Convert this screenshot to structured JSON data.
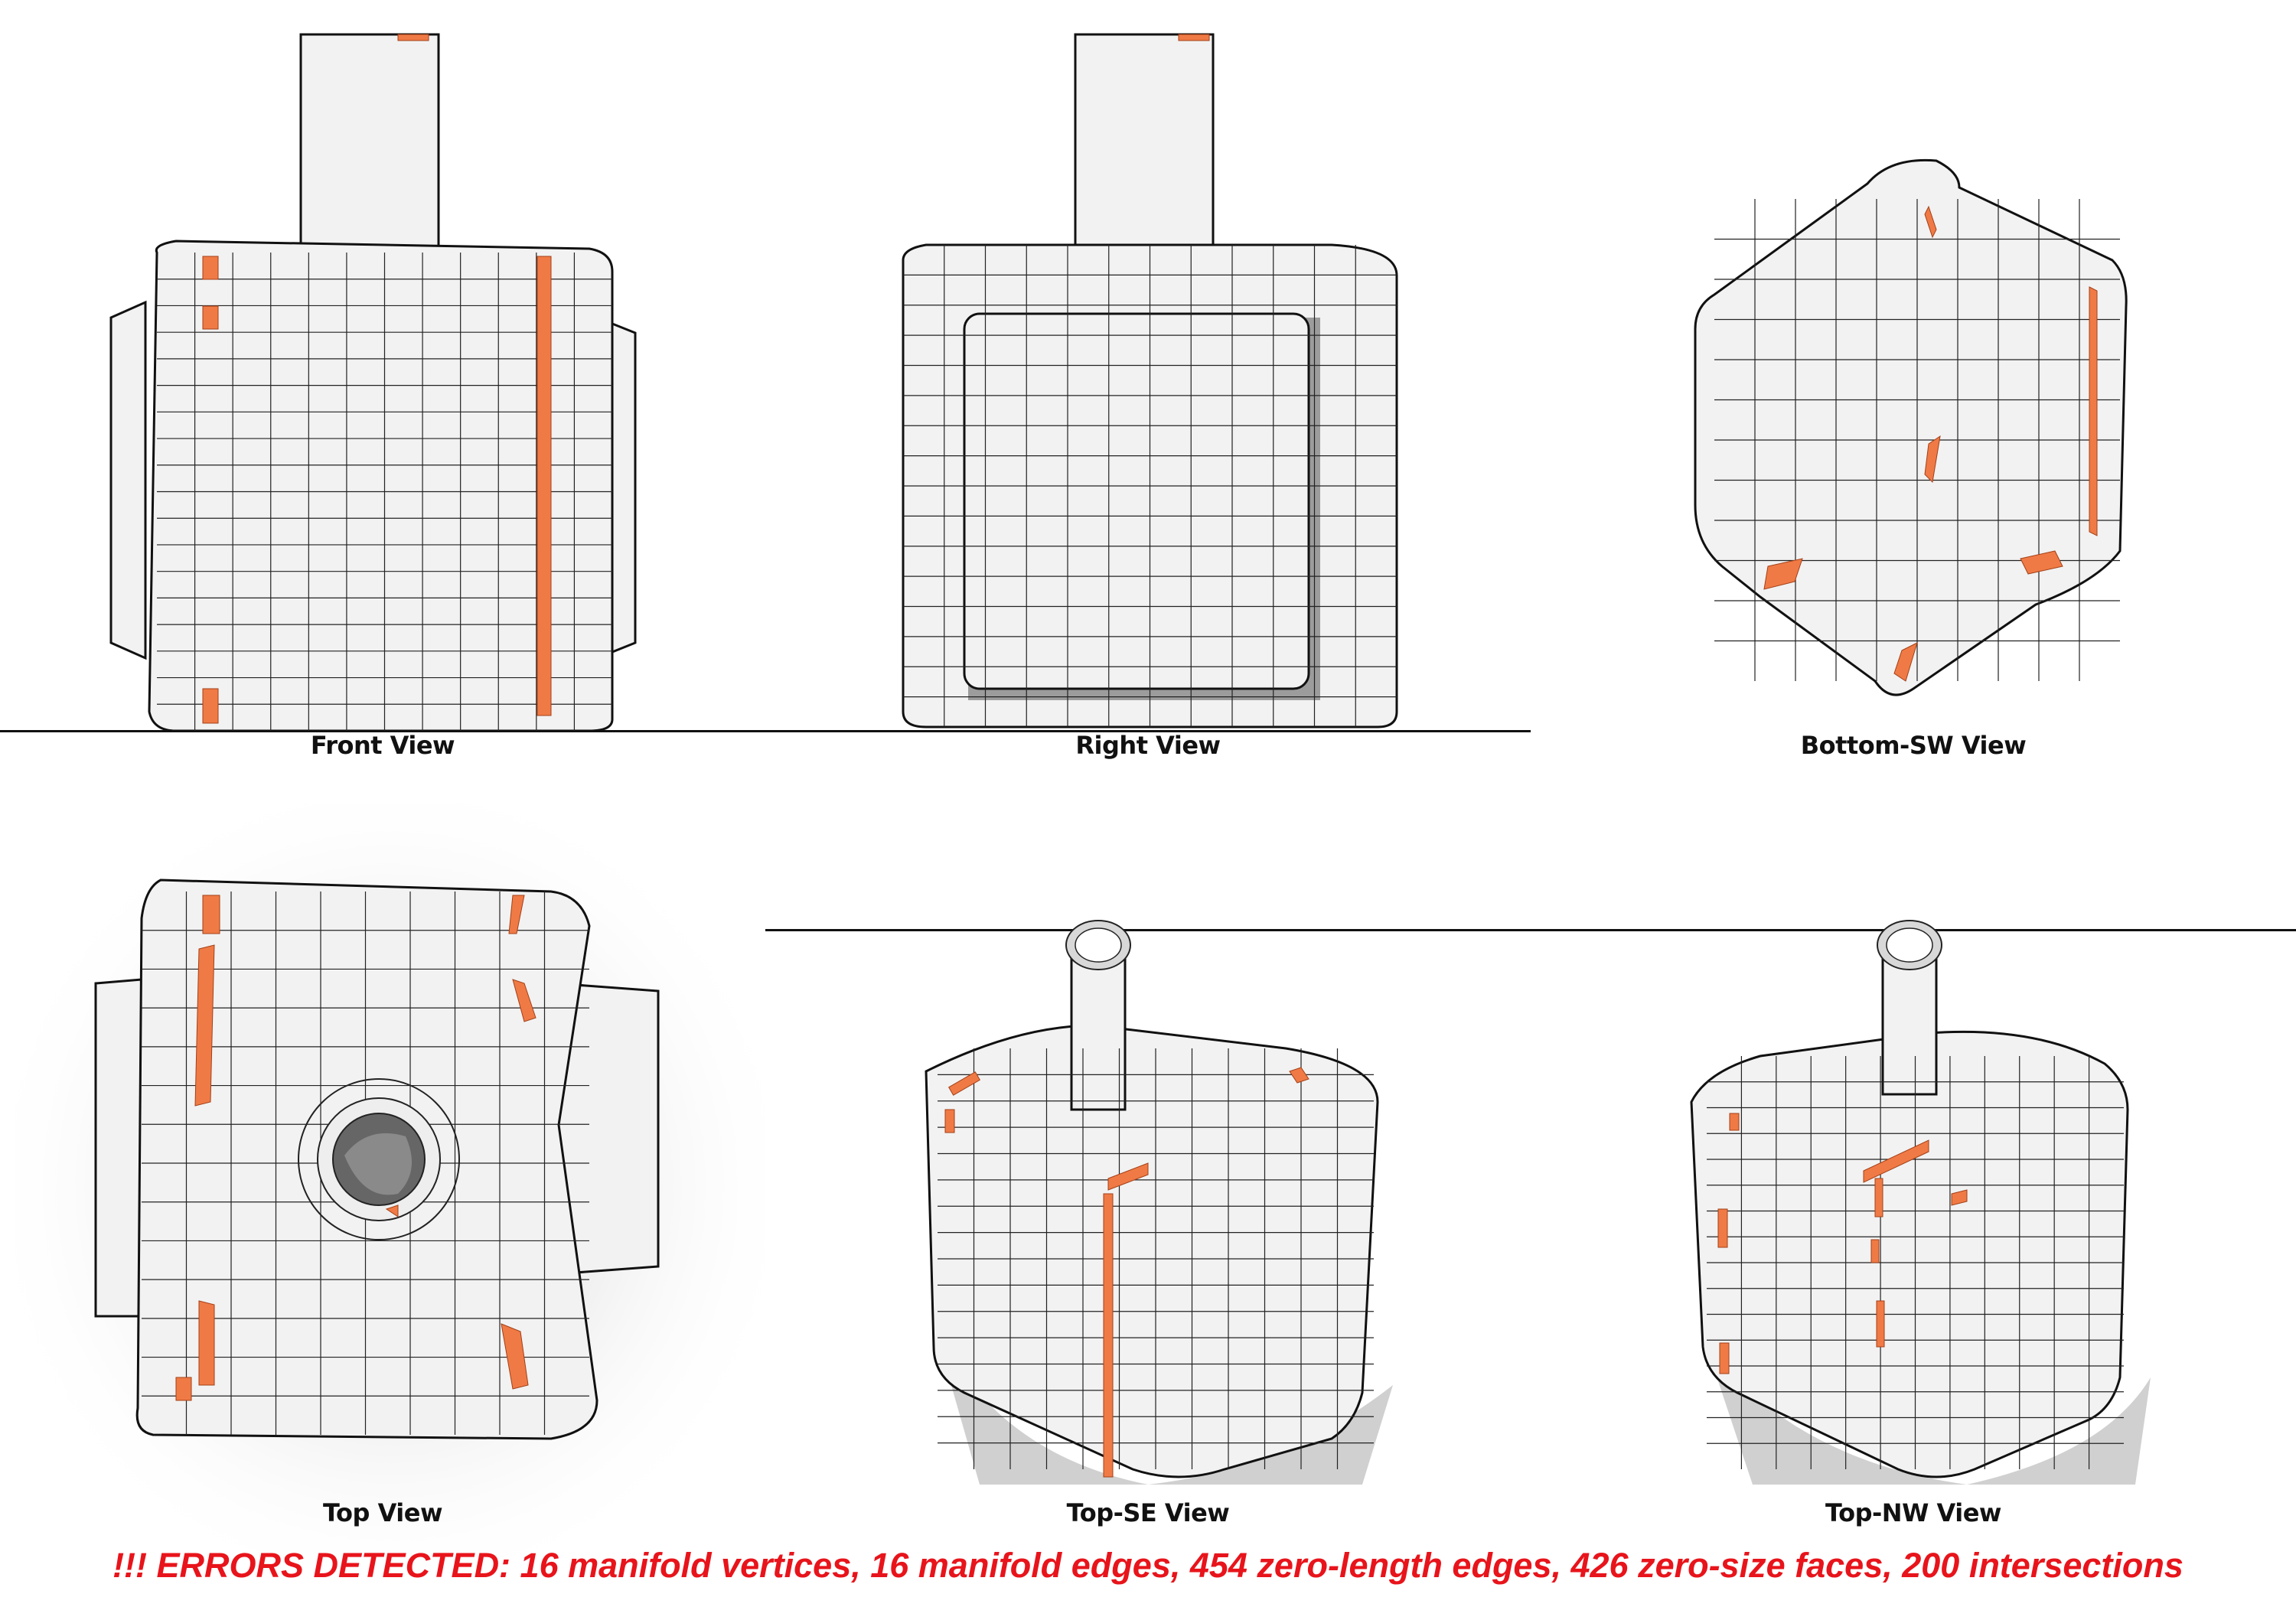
{
  "views": {
    "front": {
      "label": "Front View"
    },
    "right": {
      "label": "Right View"
    },
    "bottom_sw": {
      "label": "Bottom-SW View"
    },
    "top": {
      "label": "Top View"
    },
    "top_se": {
      "label": "Top-SE View"
    },
    "top_nw": {
      "label": "Top-NW View"
    }
  },
  "status": {
    "error_message": "!!! ERRORS DETECTED: 16 manifold vertices, 16 manifold edges, 454 zero-length edges, 426 zero-size faces, 200 intersections"
  },
  "colors": {
    "error_highlight": "#f07a45",
    "error_text": "#e8141b",
    "mesh_surface": "#f2f2f2",
    "wireframe": "#222222"
  }
}
